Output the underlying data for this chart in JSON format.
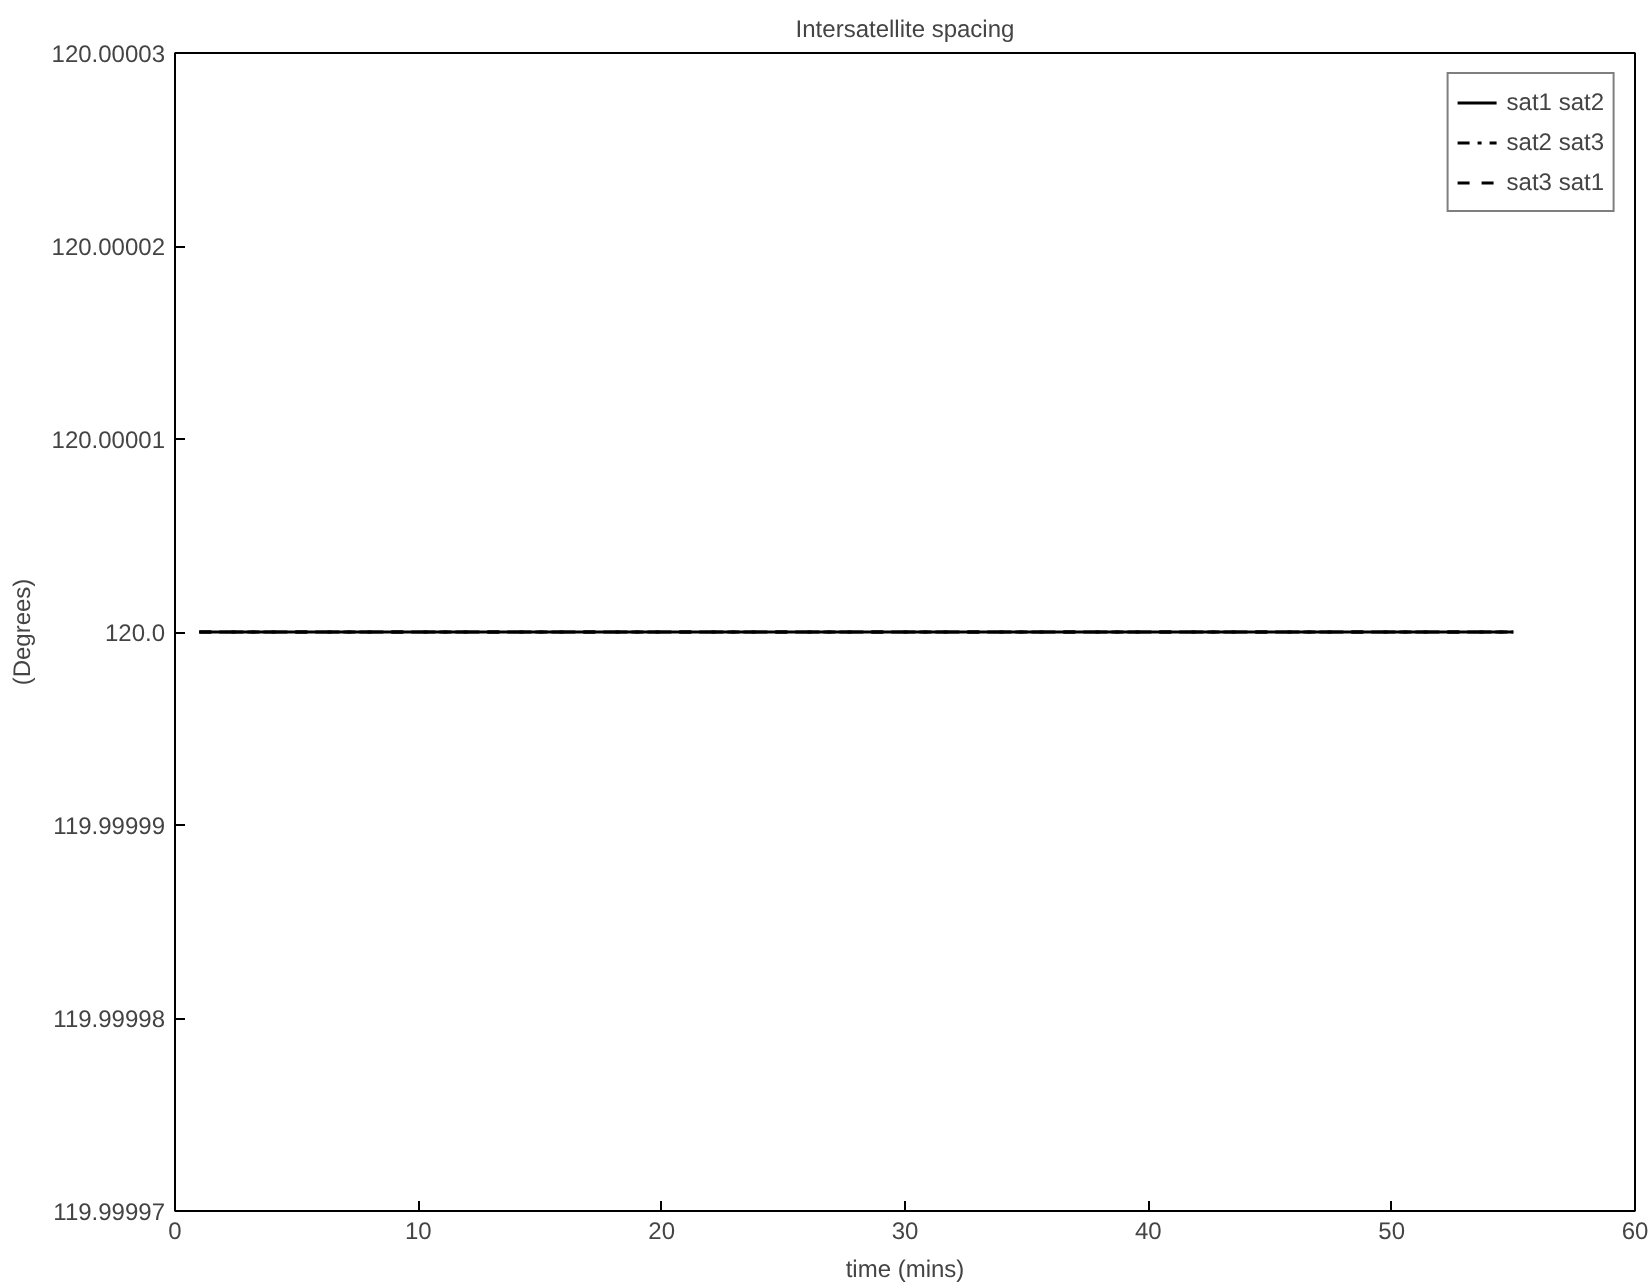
{
  "chart_data": {
    "type": "line",
    "title": "Intersatellite spacing",
    "xlabel": "time (mins)",
    "ylabel": "(Degrees)",
    "xlim": [
      0,
      60
    ],
    "xticks": [
      0,
      10,
      20,
      30,
      40,
      50,
      60
    ],
    "ylim": [
      119.99997,
      120.00003
    ],
    "yticks": [
      119.99997,
      119.99998,
      119.99999,
      {
        "value": 120,
        "label": "120.0"
      },
      120.00001,
      120.00002,
      120.00003
    ],
    "grid": false,
    "legend": "top right",
    "marker": "none",
    "x": [
      1,
      55
    ],
    "series": [
      {
        "name": "sat1 sat2",
        "color": "#000000",
        "line_style": "solid",
        "values": [
          120,
          120
        ]
      },
      {
        "name": "sat2 sat3",
        "color": "#000000",
        "line_style": "dashdot",
        "values": [
          120,
          120
        ]
      },
      {
        "name": "sat3 sat1",
        "color": "#000000",
        "line_style": "dashed",
        "values": [
          120,
          120
        ]
      }
    ]
  }
}
